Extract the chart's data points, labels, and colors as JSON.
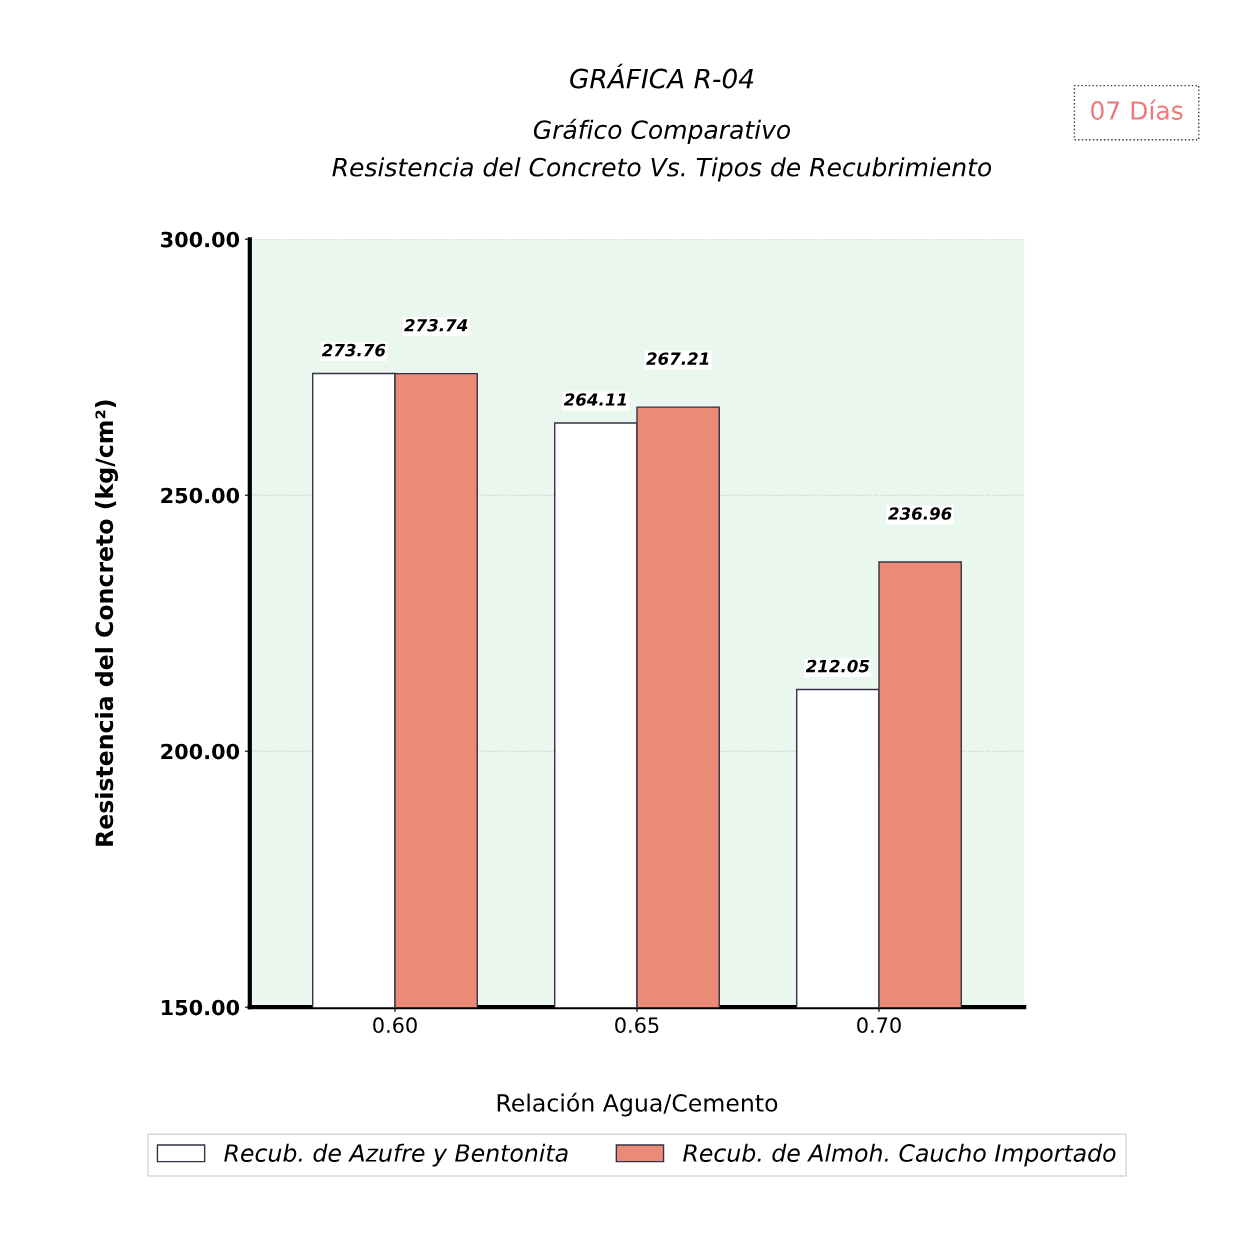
{
  "chart_data": {
    "type": "bar",
    "title": "GRÁFICA R-04",
    "subtitle": "Gráfico Comparativo\nResistencia del Concreto Vs. Tipos de Recubrimiento",
    "xlabel": "Relación Agua/Cemento",
    "ylabel": "Resistencia del Concreto (kg/cm²)",
    "categories": [
      "0.60",
      "0.65",
      "0.70"
    ],
    "series": [
      {
        "name": "Recub. de Azufre y Bentonita",
        "color": "#ffffff",
        "values": [
          273.76,
          264.11,
          212.05
        ]
      },
      {
        "name": "Recub. de Almoh. Caucho Importado",
        "color": "#ec8a78",
        "values": [
          273.74,
          267.21,
          236.96
        ]
      }
    ],
    "ylim": [
      150,
      300
    ],
    "yticks": [
      {
        "value": 150,
        "label": "150.00"
      },
      {
        "value": 200,
        "label": "200.00"
      },
      {
        "value": 250,
        "label": "250.00"
      },
      {
        "value": 300,
        "label": "300.00"
      }
    ],
    "grid": "y",
    "legend": "bottom",
    "data_labels": true,
    "annotations": [
      "07 Días"
    ]
  }
}
